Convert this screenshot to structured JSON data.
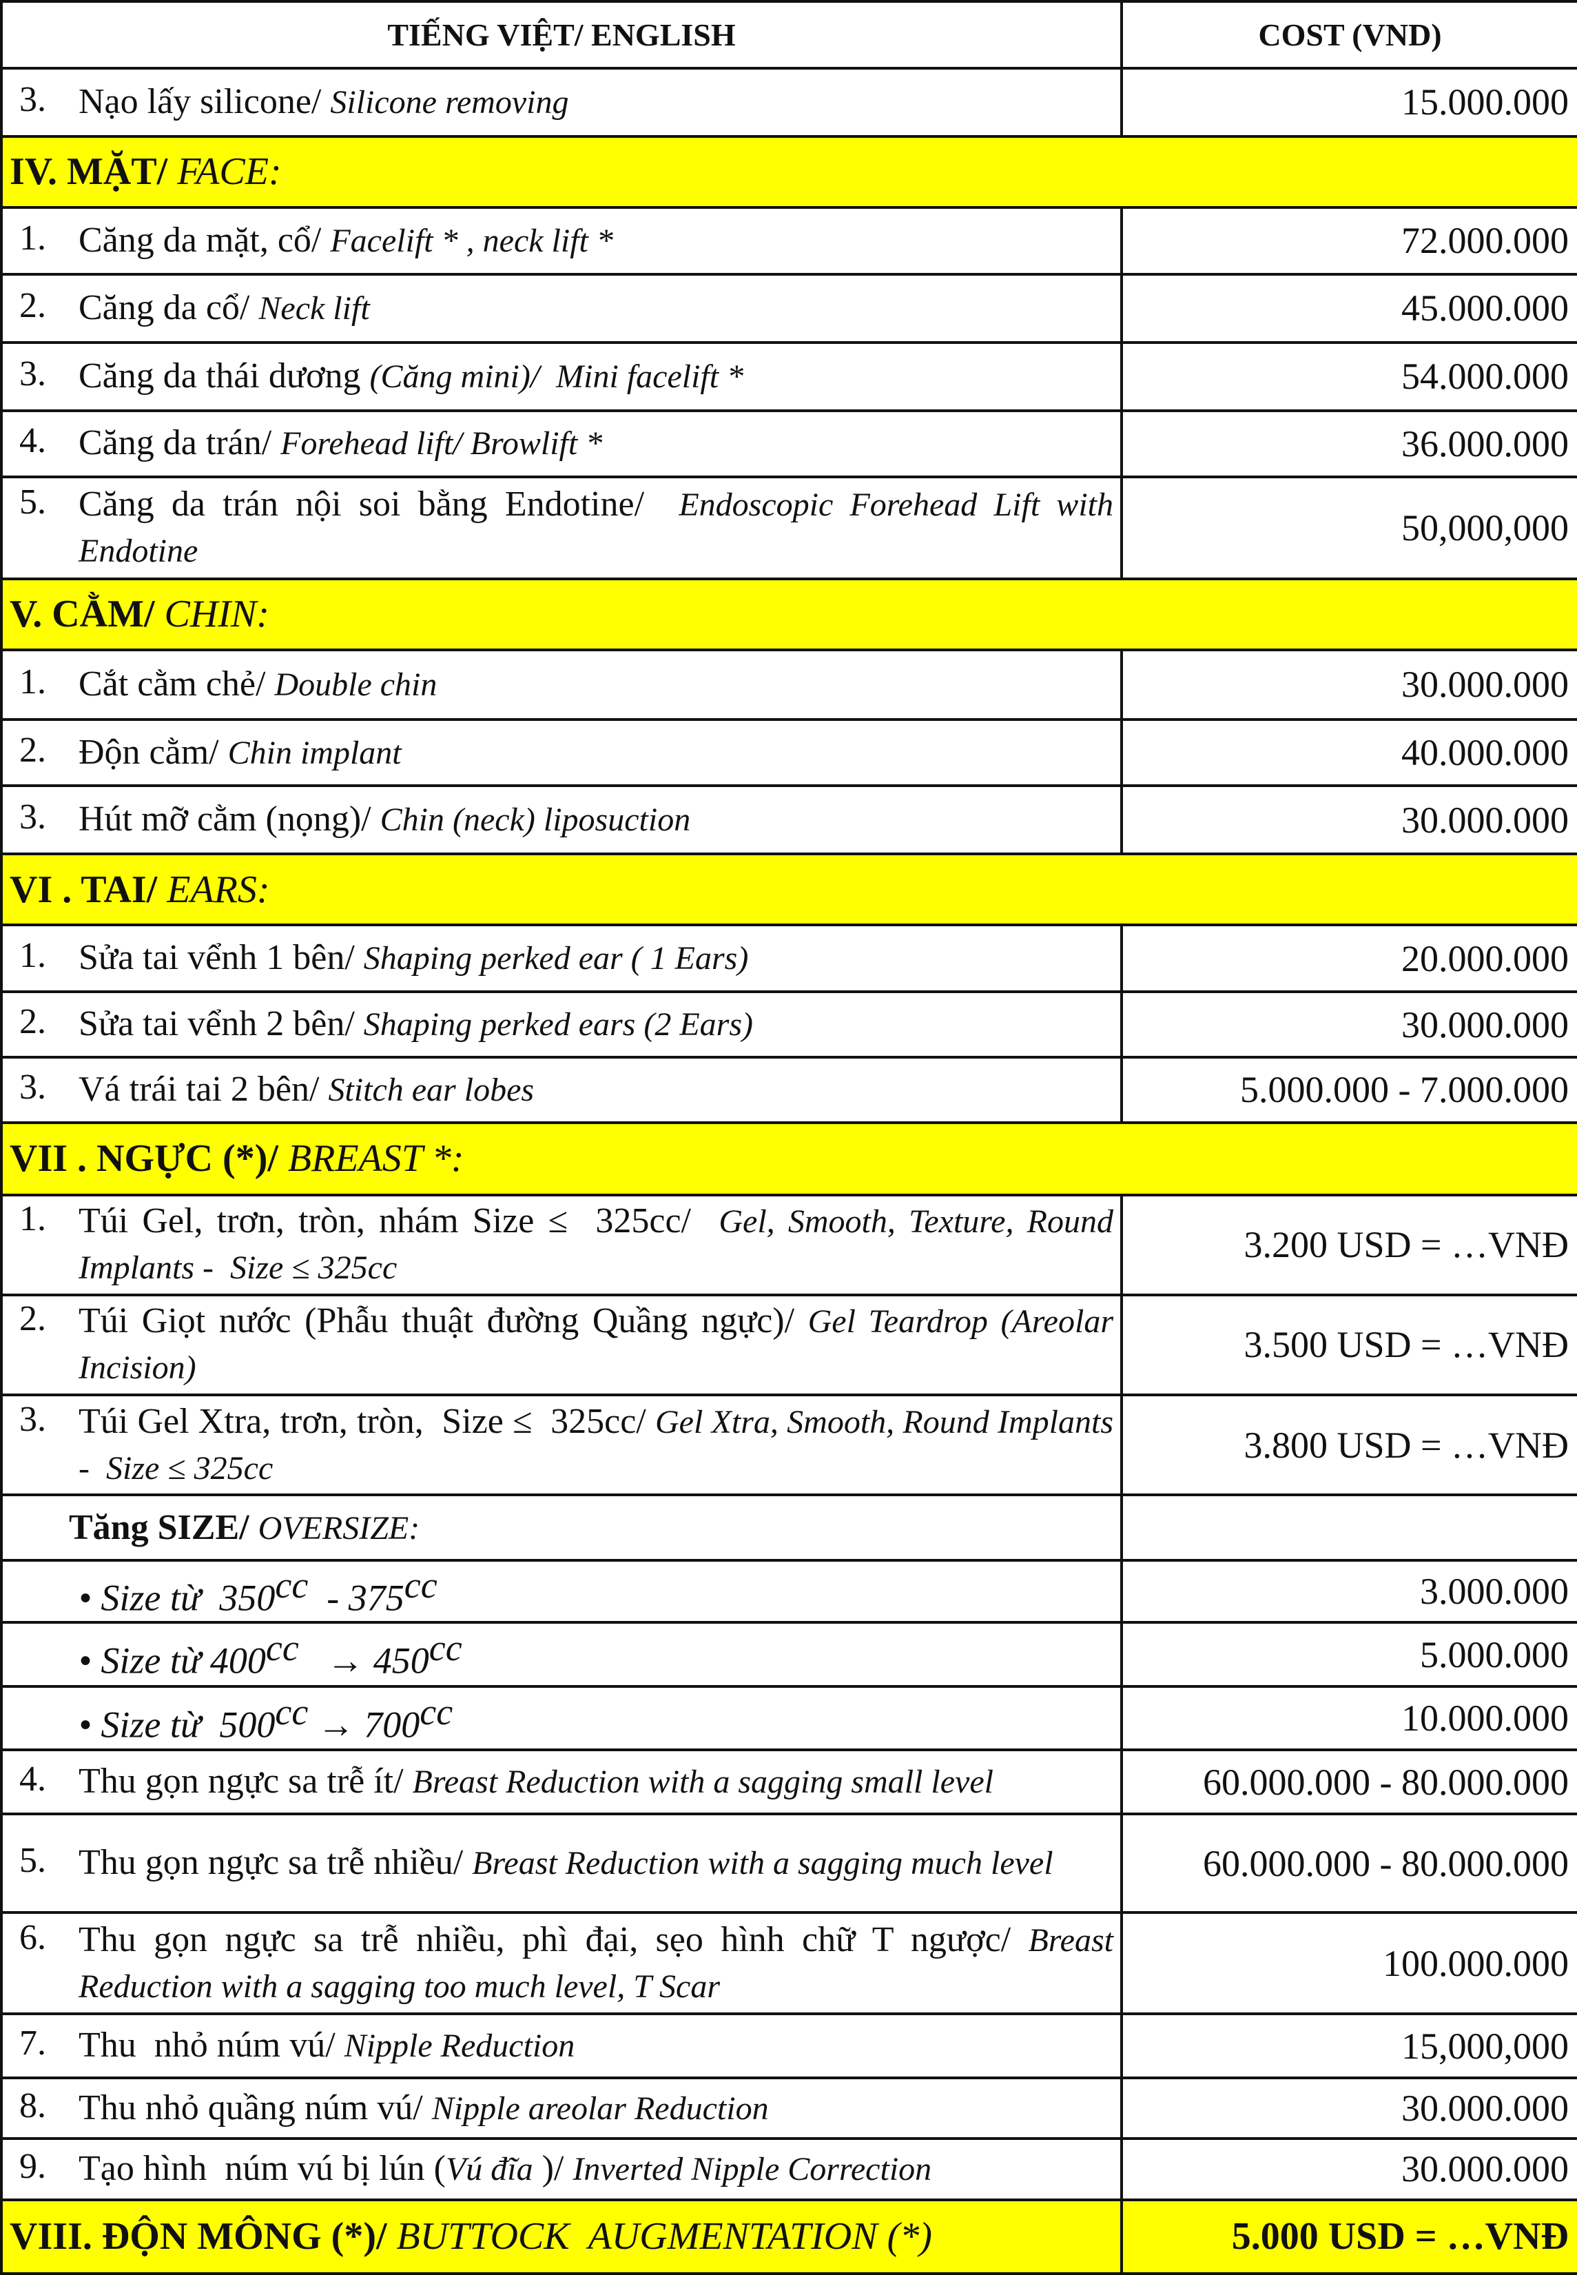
{
  "header": [
    "TIẾNG VIỆT/ ENGLISH",
    "COST (VND)"
  ],
  "rows": [
    {
      "number": "3.",
      "label": [
        {
          "text": "Nạo lấy silicone/ "
        },
        {
          "text": "Silicone removing",
          "italic": true
        }
      ],
      "cost": "15.000.000"
    },
    {
      "section": [
        {
          "text": "IV. MẶT/ ",
          "bold": true
        },
        {
          "text": "FACE:",
          "italic": true
        }
      ]
    },
    {
      "number": "1.",
      "label": [
        {
          "text": "Căng da mặt, cổ/ "
        },
        {
          "text": "Facelift * , neck lift *",
          "italic": true
        }
      ],
      "cost": "72.000.000"
    },
    {
      "number": "2.",
      "label": [
        {
          "text": "Căng da cổ/ "
        },
        {
          "text": "Neck lift",
          "italic": true
        }
      ],
      "cost": "45.000.000"
    },
    {
      "number": "3.",
      "label": [
        {
          "text": "Căng da thái dương "
        },
        {
          "text": "(Căng mini)/  Mini facelift *",
          "italic": true
        }
      ],
      "cost": "54.000.000"
    },
    {
      "number": "4.",
      "label": [
        {
          "text": "Căng da trán/ "
        },
        {
          "text": "Forehead lift/ Browlift *",
          "italic": true
        }
      ],
      "cost": "36.000.000"
    },
    {
      "number": "5.",
      "label": [
        {
          "text": "Căng da trán nội soi bằng Endotine/  "
        },
        {
          "text": "Endoscopic Forehead Lift with Endotine",
          "italic": true
        }
      ],
      "cost": "50,000,000"
    },
    {
      "section": [
        {
          "text": "V. CẰM/ ",
          "bold": true
        },
        {
          "text": "CHIN:",
          "italic": true
        }
      ]
    },
    {
      "number": "1.",
      "label": [
        {
          "text": "Cắt cằm chẻ/ "
        },
        {
          "text": "Double chin",
          "italic": true
        }
      ],
      "cost": "30.000.000"
    },
    {
      "number": "2.",
      "label": [
        {
          "text": "Độn cằm/ "
        },
        {
          "text": "Chin implant",
          "italic": true
        }
      ],
      "cost": "40.000.000"
    },
    {
      "number": "3.",
      "label": [
        {
          "text": "Hút mỡ cằm (nọng)/ "
        },
        {
          "text": "Chin (neck) liposuction",
          "italic": true
        }
      ],
      "cost": "30.000.000"
    },
    {
      "section": [
        {
          "text": "VI . TAI/ ",
          "bold": true
        },
        {
          "text": "EARS:",
          "italic": true
        }
      ]
    },
    {
      "number": "1.",
      "label": [
        {
          "text": "Sửa tai vểnh 1 bên/ "
        },
        {
          "text": "Shaping perked ear ( 1 Ears)",
          "italic": true
        }
      ],
      "cost": "20.000.000"
    },
    {
      "number": "2.",
      "label": [
        {
          "text": "Sửa tai vểnh 2 bên/ "
        },
        {
          "text": "Shaping perked ears (2 Ears)",
          "italic": true
        }
      ],
      "cost": "30.000.000"
    },
    {
      "number": "3.",
      "label": [
        {
          "text": "Vá trái tai 2 bên/ "
        },
        {
          "text": "Stitch ear lobes",
          "italic": true
        }
      ],
      "cost": "5.000.000 - 7.000.000"
    },
    {
      "section": [
        {
          "text": "VII . NGỰC (*)/ ",
          "bold": true
        },
        {
          "text": "BREAST *:",
          "italic": true
        }
      ]
    },
    {
      "number": "1.",
      "label": [
        {
          "text": "Túi Gel, trơn, tròn, nhám Size ≤  325cc/  "
        },
        {
          "text": "Gel, Smooth, Texture, Round   Implants -  Size ≤ 325cc",
          "italic": true
        }
      ],
      "cost": "3.200 USD = …VNĐ"
    },
    {
      "number": "2.",
      "label": [
        {
          "text": "Túi Giọt nước (Phẫu thuật đường Quầng ngực)/ "
        },
        {
          "text": "Gel Teardrop (Areolar Incision)",
          "italic": true
        }
      ],
      "cost": "3.500 USD = …VNĐ"
    },
    {
      "number": "3.",
      "label": [
        {
          "text": "Túi Gel Xtra, trơn, tròn,  Size ≤  325cc/ "
        },
        {
          "text": "Gel Xtra, Smooth, Round Implants -  Size ≤ 325cc",
          "italic": true
        }
      ],
      "cost": "3.800 USD = …VNĐ"
    },
    {
      "indent": [
        {
          "text": "Tăng SIZE/ ",
          "bold": true
        },
        {
          "text": "OVERSIZE:",
          "italic": true
        }
      ]
    },
    {
      "bullet": [
        {
          "text": "• Size từ  350",
          "italic": true
        },
        {
          "text": "cc",
          "italic": true,
          "sup": true
        },
        {
          "text": "  - 375",
          "italic": true
        },
        {
          "text": "cc",
          "italic": true,
          "sup": true
        }
      ],
      "cost": "3.000.000"
    },
    {
      "bullet": [
        {
          "text": "• Size từ 400",
          "italic": true
        },
        {
          "text": "cc",
          "italic": true,
          "sup": true
        },
        {
          "text": "   → 450",
          "italic": true
        },
        {
          "text": "cc",
          "italic": true,
          "sup": true
        }
      ],
      "cost": "5.000.000"
    },
    {
      "bullet": [
        {
          "text": "• Size từ  500",
          "italic": true
        },
        {
          "text": "cc",
          "italic": true,
          "sup": true
        },
        {
          "text": " → 700",
          "italic": true
        },
        {
          "text": "cc",
          "italic": true,
          "sup": true
        }
      ],
      "cost": "10.000.000"
    },
    {
      "number": "4.",
      "label": [
        {
          "text": "Thu gọn ngực sa trễ ít/ "
        },
        {
          "text": "Breast Reduction with a sagging small level",
          "italic": true
        }
      ],
      "cost": "60.000.000 - 80.000.000"
    },
    {
      "number": "5.",
      "label": [
        {
          "text": "Thu gọn ngực sa trễ nhiều/ "
        },
        {
          "text": "Breast Reduction with a sagging much level",
          "italic": true
        }
      ],
      "cost": "60.000.000 - 80.000.000"
    },
    {
      "number": "6.",
      "label": [
        {
          "text": "Thu gọn ngực sa trễ nhiều, phì đại, sẹo hình chữ T ngược/ "
        },
        {
          "text": "Breast Reduction with a sagging too much level, T Scar",
          "italic": true
        }
      ],
      "cost": "100.000.000"
    },
    {
      "number": "7.",
      "label": [
        {
          "text": "Thu  nhỏ núm vú/ "
        },
        {
          "text": "Nipple Reduction",
          "italic": true
        }
      ],
      "cost": "15,000,000"
    },
    {
      "number": "8.",
      "label": [
        {
          "text": "Thu nhỏ quầng núm vú/ "
        },
        {
          "text": "Nipple areolar Reduction",
          "italic": true
        }
      ],
      "cost": "30.000.000"
    },
    {
      "number": "9.",
      "label": [
        {
          "text": "Tạo hình  núm vú bị lún ("
        },
        {
          "text": "Vú đĩa",
          "italic": true
        },
        {
          "text": " )/ "
        },
        {
          "text": "Inverted Nipple Correction",
          "italic": true
        }
      ],
      "cost": "30.000.000"
    },
    {
      "section": [
        {
          "text": "VIII. ĐỘN MÔNG (*)/ ",
          "bold": true
        },
        {
          "text": "BUTTOCK  AUGMENTATION (*)",
          "italic": true
        }
      ],
      "cost": "5.000 USD = …VNĐ"
    }
  ]
}
